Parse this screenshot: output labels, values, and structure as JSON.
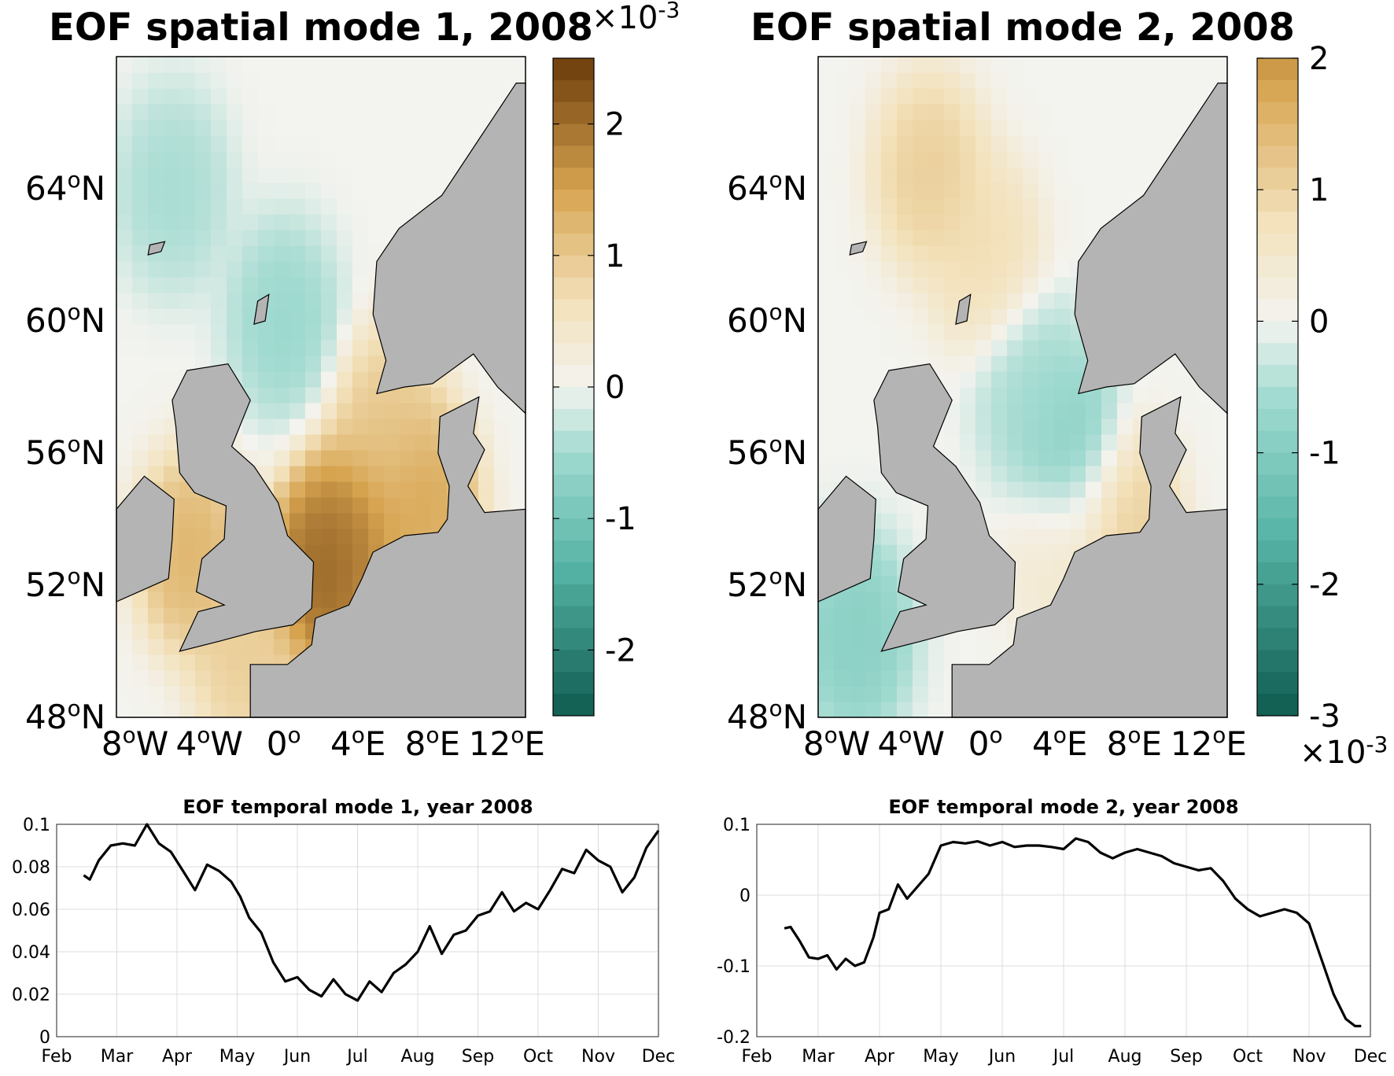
{
  "colors": {
    "land": "#b4b4b4",
    "neg_strong": "#0f5a50",
    "neg_mid": "#55b4a5",
    "neg_light": "#a0dad0",
    "neutral": "#f3f3ef",
    "pos_light": "#f3e2bc",
    "pos_mid": "#d7a450",
    "pos_strong": "#6a3a0a",
    "line": "#000000"
  },
  "chart_data": [
    {
      "type": "heatmap",
      "title": "EOF spatial mode 1, 2008",
      "lat_ticks": [
        48,
        52,
        56,
        60,
        64
      ],
      "lat_labels": [
        "48",
        "52",
        "56",
        "60",
        "64"
      ],
      "lat_suffix": "N",
      "lon_ticks": [
        -8,
        -4,
        0,
        4,
        8,
        12
      ],
      "lon_labels": [
        "8",
        "4",
        "0",
        "4",
        "8",
        "12"
      ],
      "lon_suffixes": [
        "W",
        "W",
        "",
        "E",
        "E",
        "E"
      ],
      "degree_symbol": "o",
      "lat_range": [
        48,
        68
      ],
      "lon_range": [
        -9,
        13
      ],
      "colorbar": {
        "range": [
          -2.5,
          2.5
        ],
        "ticks": [
          -2,
          -1,
          0,
          1,
          2
        ],
        "tick_labels": [
          "-2",
          "-1",
          "0",
          "1",
          "2"
        ],
        "scale_base": "×10",
        "scale_exp": "-3",
        "scale_position": "top"
      },
      "features": [
        {
          "lon": 3.5,
          "lat": 53.5,
          "value": 2.0
        },
        {
          "lon": 2.0,
          "lat": 52.3,
          "value": 2.3
        },
        {
          "lon": 7.5,
          "lat": 54.5,
          "value": 1.6
        },
        {
          "lon": 5.5,
          "lat": 56.8,
          "value": 1.1
        },
        {
          "lon": -5.0,
          "lat": 53.0,
          "value": 1.4
        },
        {
          "lon": -2.0,
          "lat": 49.8,
          "value": 1.0
        },
        {
          "lon": -6.0,
          "lat": 64.0,
          "value": -0.5
        },
        {
          "lon": 0.0,
          "lat": 60.0,
          "value": -0.6
        }
      ]
    },
    {
      "type": "heatmap",
      "title": "EOF spatial mode 2, 2008",
      "lat_ticks": [
        48,
        52,
        56,
        60,
        64
      ],
      "lat_labels": [
        "48",
        "52",
        "56",
        "60",
        "64"
      ],
      "lat_suffix": "N",
      "lon_ticks": [
        -8,
        -4,
        0,
        4,
        8,
        12
      ],
      "lon_labels": [
        "8",
        "4",
        "0",
        "4",
        "8",
        "12"
      ],
      "lon_suffixes": [
        "W",
        "W",
        "",
        "E",
        "E",
        "E"
      ],
      "degree_symbol": "o",
      "lat_range": [
        48,
        68
      ],
      "lon_range": [
        -9,
        13
      ],
      "colorbar": {
        "range": [
          -3,
          2
        ],
        "ticks": [
          -3,
          -2,
          -1,
          0,
          1,
          2
        ],
        "tick_labels": [
          "-3",
          "-2",
          "-1",
          "0",
          "1",
          "2"
        ],
        "scale_base": "×10",
        "scale_exp": "-3",
        "scale_position": "bottom"
      },
      "features": [
        {
          "lon": -3.0,
          "lat": 64.5,
          "value": 1.2
        },
        {
          "lon": 0.0,
          "lat": 62.0,
          "value": 0.9
        },
        {
          "lon": 4.5,
          "lat": 56.0,
          "value": -1.0
        },
        {
          "lon": 2.5,
          "lat": 58.0,
          "value": -0.6
        },
        {
          "lon": -7.0,
          "lat": 50.5,
          "value": -1.0
        },
        {
          "lon": 4.0,
          "lat": 52.8,
          "value": 0.5
        },
        {
          "lon": 7.5,
          "lat": 53.8,
          "value": 1.2
        }
      ]
    },
    {
      "type": "line",
      "title": "EOF temporal mode 1, year 2008",
      "xlabels": [
        "Feb",
        "Mar",
        "Apr",
        "May",
        "Jun",
        "Jul",
        "Aug",
        "Sep",
        "Oct",
        "Nov",
        "Dec"
      ],
      "ylim": [
        0,
        0.1
      ],
      "yticks": [
        0,
        0.02,
        0.04,
        0.06,
        0.08,
        0.1
      ],
      "ytick_labels": [
        "0",
        "0.02",
        "0.04",
        "0.06",
        "0.08",
        "0.1"
      ],
      "grid": true,
      "x": [
        0.45,
        0.55,
        0.7,
        0.9,
        1.1,
        1.3,
        1.5,
        1.7,
        1.9,
        2.1,
        2.3,
        2.5,
        2.7,
        2.9,
        3.05,
        3.2,
        3.4,
        3.6,
        3.8,
        4.0,
        4.2,
        4.4,
        4.6,
        4.8,
        5.0,
        5.2,
        5.4,
        5.6,
        5.8,
        6.0,
        6.2,
        6.4,
        6.6,
        6.8,
        7.0,
        7.2,
        7.4,
        7.6,
        7.8,
        8.0,
        8.2,
        8.4,
        8.6,
        8.8,
        9.0,
        9.2,
        9.4,
        9.6,
        9.8,
        10.0
      ],
      "values": [
        0.076,
        0.074,
        0.083,
        0.09,
        0.091,
        0.09,
        0.1,
        0.091,
        0.087,
        0.078,
        0.069,
        0.081,
        0.078,
        0.073,
        0.066,
        0.056,
        0.049,
        0.035,
        0.026,
        0.028,
        0.022,
        0.019,
        0.027,
        0.02,
        0.017,
        0.026,
        0.021,
        0.03,
        0.034,
        0.04,
        0.052,
        0.039,
        0.048,
        0.05,
        0.057,
        0.059,
        0.068,
        0.059,
        0.063,
        0.06,
        0.069,
        0.079,
        0.077,
        0.088,
        0.083,
        0.08,
        0.068,
        0.075,
        0.089,
        0.097
      ]
    },
    {
      "type": "line",
      "title": "EOF temporal mode 2, year 2008",
      "xlabels": [
        "Feb",
        "Mar",
        "Apr",
        "May",
        "Jun",
        "Jul",
        "Aug",
        "Sep",
        "Oct",
        "Nov",
        "Dec"
      ],
      "ylim": [
        -0.2,
        0.1
      ],
      "yticks": [
        -0.2,
        -0.1,
        0,
        0.1
      ],
      "ytick_labels": [
        "-0.2",
        "-0.1",
        "0",
        "0.1"
      ],
      "grid": true,
      "x": [
        0.45,
        0.55,
        0.7,
        0.85,
        1.0,
        1.15,
        1.3,
        1.45,
        1.6,
        1.75,
        1.9,
        2.0,
        2.15,
        2.3,
        2.45,
        2.6,
        2.8,
        3.0,
        3.2,
        3.4,
        3.6,
        3.8,
        4.0,
        4.2,
        4.4,
        4.6,
        4.8,
        5.0,
        5.2,
        5.4,
        5.6,
        5.8,
        6.0,
        6.2,
        6.4,
        6.6,
        6.8,
        7.0,
        7.2,
        7.4,
        7.6,
        7.8,
        8.0,
        8.2,
        8.4,
        8.6,
        8.8,
        9.0,
        9.2,
        9.4,
        9.6,
        9.75,
        9.85
      ],
      "values": [
        -0.047,
        -0.045,
        -0.065,
        -0.088,
        -0.09,
        -0.085,
        -0.105,
        -0.09,
        -0.1,
        -0.095,
        -0.06,
        -0.025,
        -0.02,
        0.015,
        -0.005,
        0.01,
        0.03,
        0.07,
        0.075,
        0.073,
        0.076,
        0.07,
        0.075,
        0.068,
        0.07,
        0.07,
        0.068,
        0.065,
        0.08,
        0.075,
        0.06,
        0.052,
        0.06,
        0.065,
        0.06,
        0.055,
        0.045,
        0.04,
        0.035,
        0.038,
        0.02,
        -0.005,
        -0.02,
        -0.03,
        -0.025,
        -0.02,
        -0.025,
        -0.04,
        -0.09,
        -0.14,
        -0.175,
        -0.185,
        -0.185
      ]
    }
  ]
}
